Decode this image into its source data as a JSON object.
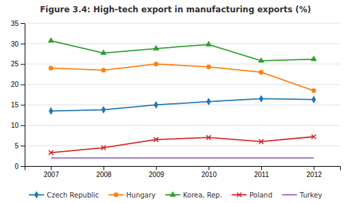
{
  "chart_data": {
    "type": "line",
    "title": "Figure 3.4:  High-tech export in manufacturing exports (%)",
    "x": [
      2007,
      2008,
      2009,
      2010,
      2011,
      2012
    ],
    "xlim": [
      2006.5,
      2012.5
    ],
    "xticks": [
      2007,
      2008,
      2009,
      2010,
      2011,
      2012
    ],
    "series": [
      {
        "name": "Czech Republic",
        "marker": "diamond",
        "values": [
          13.5,
          13.8,
          15.0,
          15.8,
          16.5,
          16.3
        ]
      },
      {
        "name": "Hungary",
        "marker": "circle",
        "values": [
          24.0,
          23.5,
          25.0,
          24.3,
          23.0,
          18.5
        ]
      },
      {
        "name": "Korea, Rep.",
        "marker": "triangle",
        "values": [
          30.7,
          27.7,
          28.8,
          29.8,
          25.8,
          26.2
        ]
      },
      {
        "name": "Poland",
        "marker": "x",
        "values": [
          3.3,
          4.5,
          6.5,
          7.0,
          6.0,
          7.2
        ]
      },
      {
        "name": "Turkey",
        "marker": "none",
        "values": [
          2.0,
          2.0,
          2.0,
          2.0,
          2.0,
          2.0
        ]
      }
    ],
    "ylim": [
      0,
      35
    ],
    "yticks": [
      0,
      5,
      10,
      15,
      20,
      25,
      30,
      35
    ],
    "grid": true,
    "legend": "bottom"
  }
}
